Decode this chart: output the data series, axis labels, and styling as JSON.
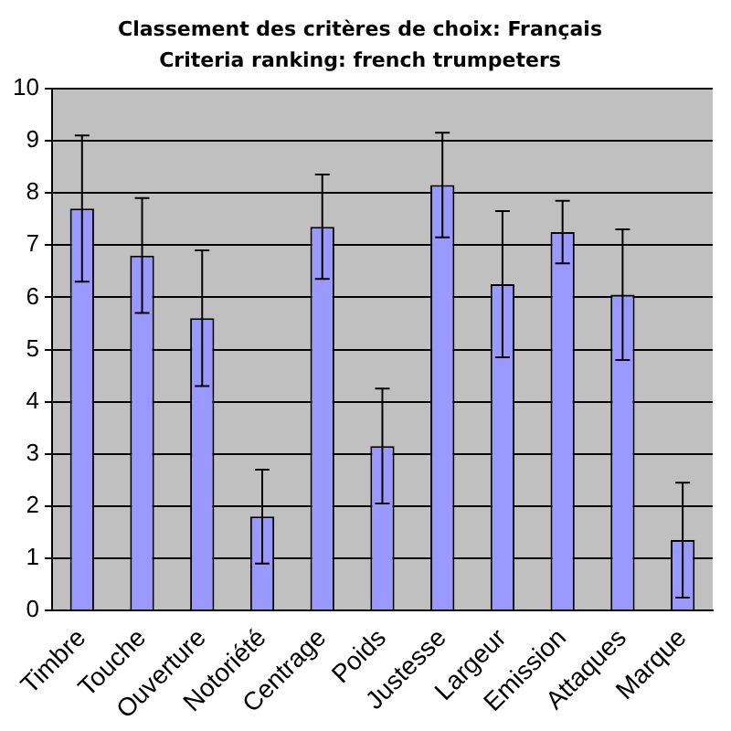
{
  "chart_data": {
    "type": "bar",
    "title": "Classement des critères de choix: Français",
    "subtitle": "Criteria ranking: french trumpeters",
    "categories": [
      "Timbre",
      "Touche",
      "Ouverture",
      "Notoriété",
      "Centrage",
      "Poids",
      "Justesse",
      "Largeur",
      "Emission",
      "Attaques",
      "Marque"
    ],
    "values": [
      7.7,
      6.8,
      5.6,
      1.8,
      7.35,
      3.15,
      8.15,
      6.25,
      7.25,
      6.05,
      1.35
    ],
    "errors": [
      1.4,
      1.1,
      1.3,
      0.9,
      1.0,
      1.1,
      1.0,
      1.4,
      0.6,
      1.25,
      1.1
    ],
    "color": "#9999ff",
    "ylim": [
      0,
      10
    ],
    "yticks": [
      0,
      1,
      2,
      3,
      4,
      5,
      6,
      7,
      8,
      9,
      10
    ],
    "grid": "y",
    "legend": false
  }
}
